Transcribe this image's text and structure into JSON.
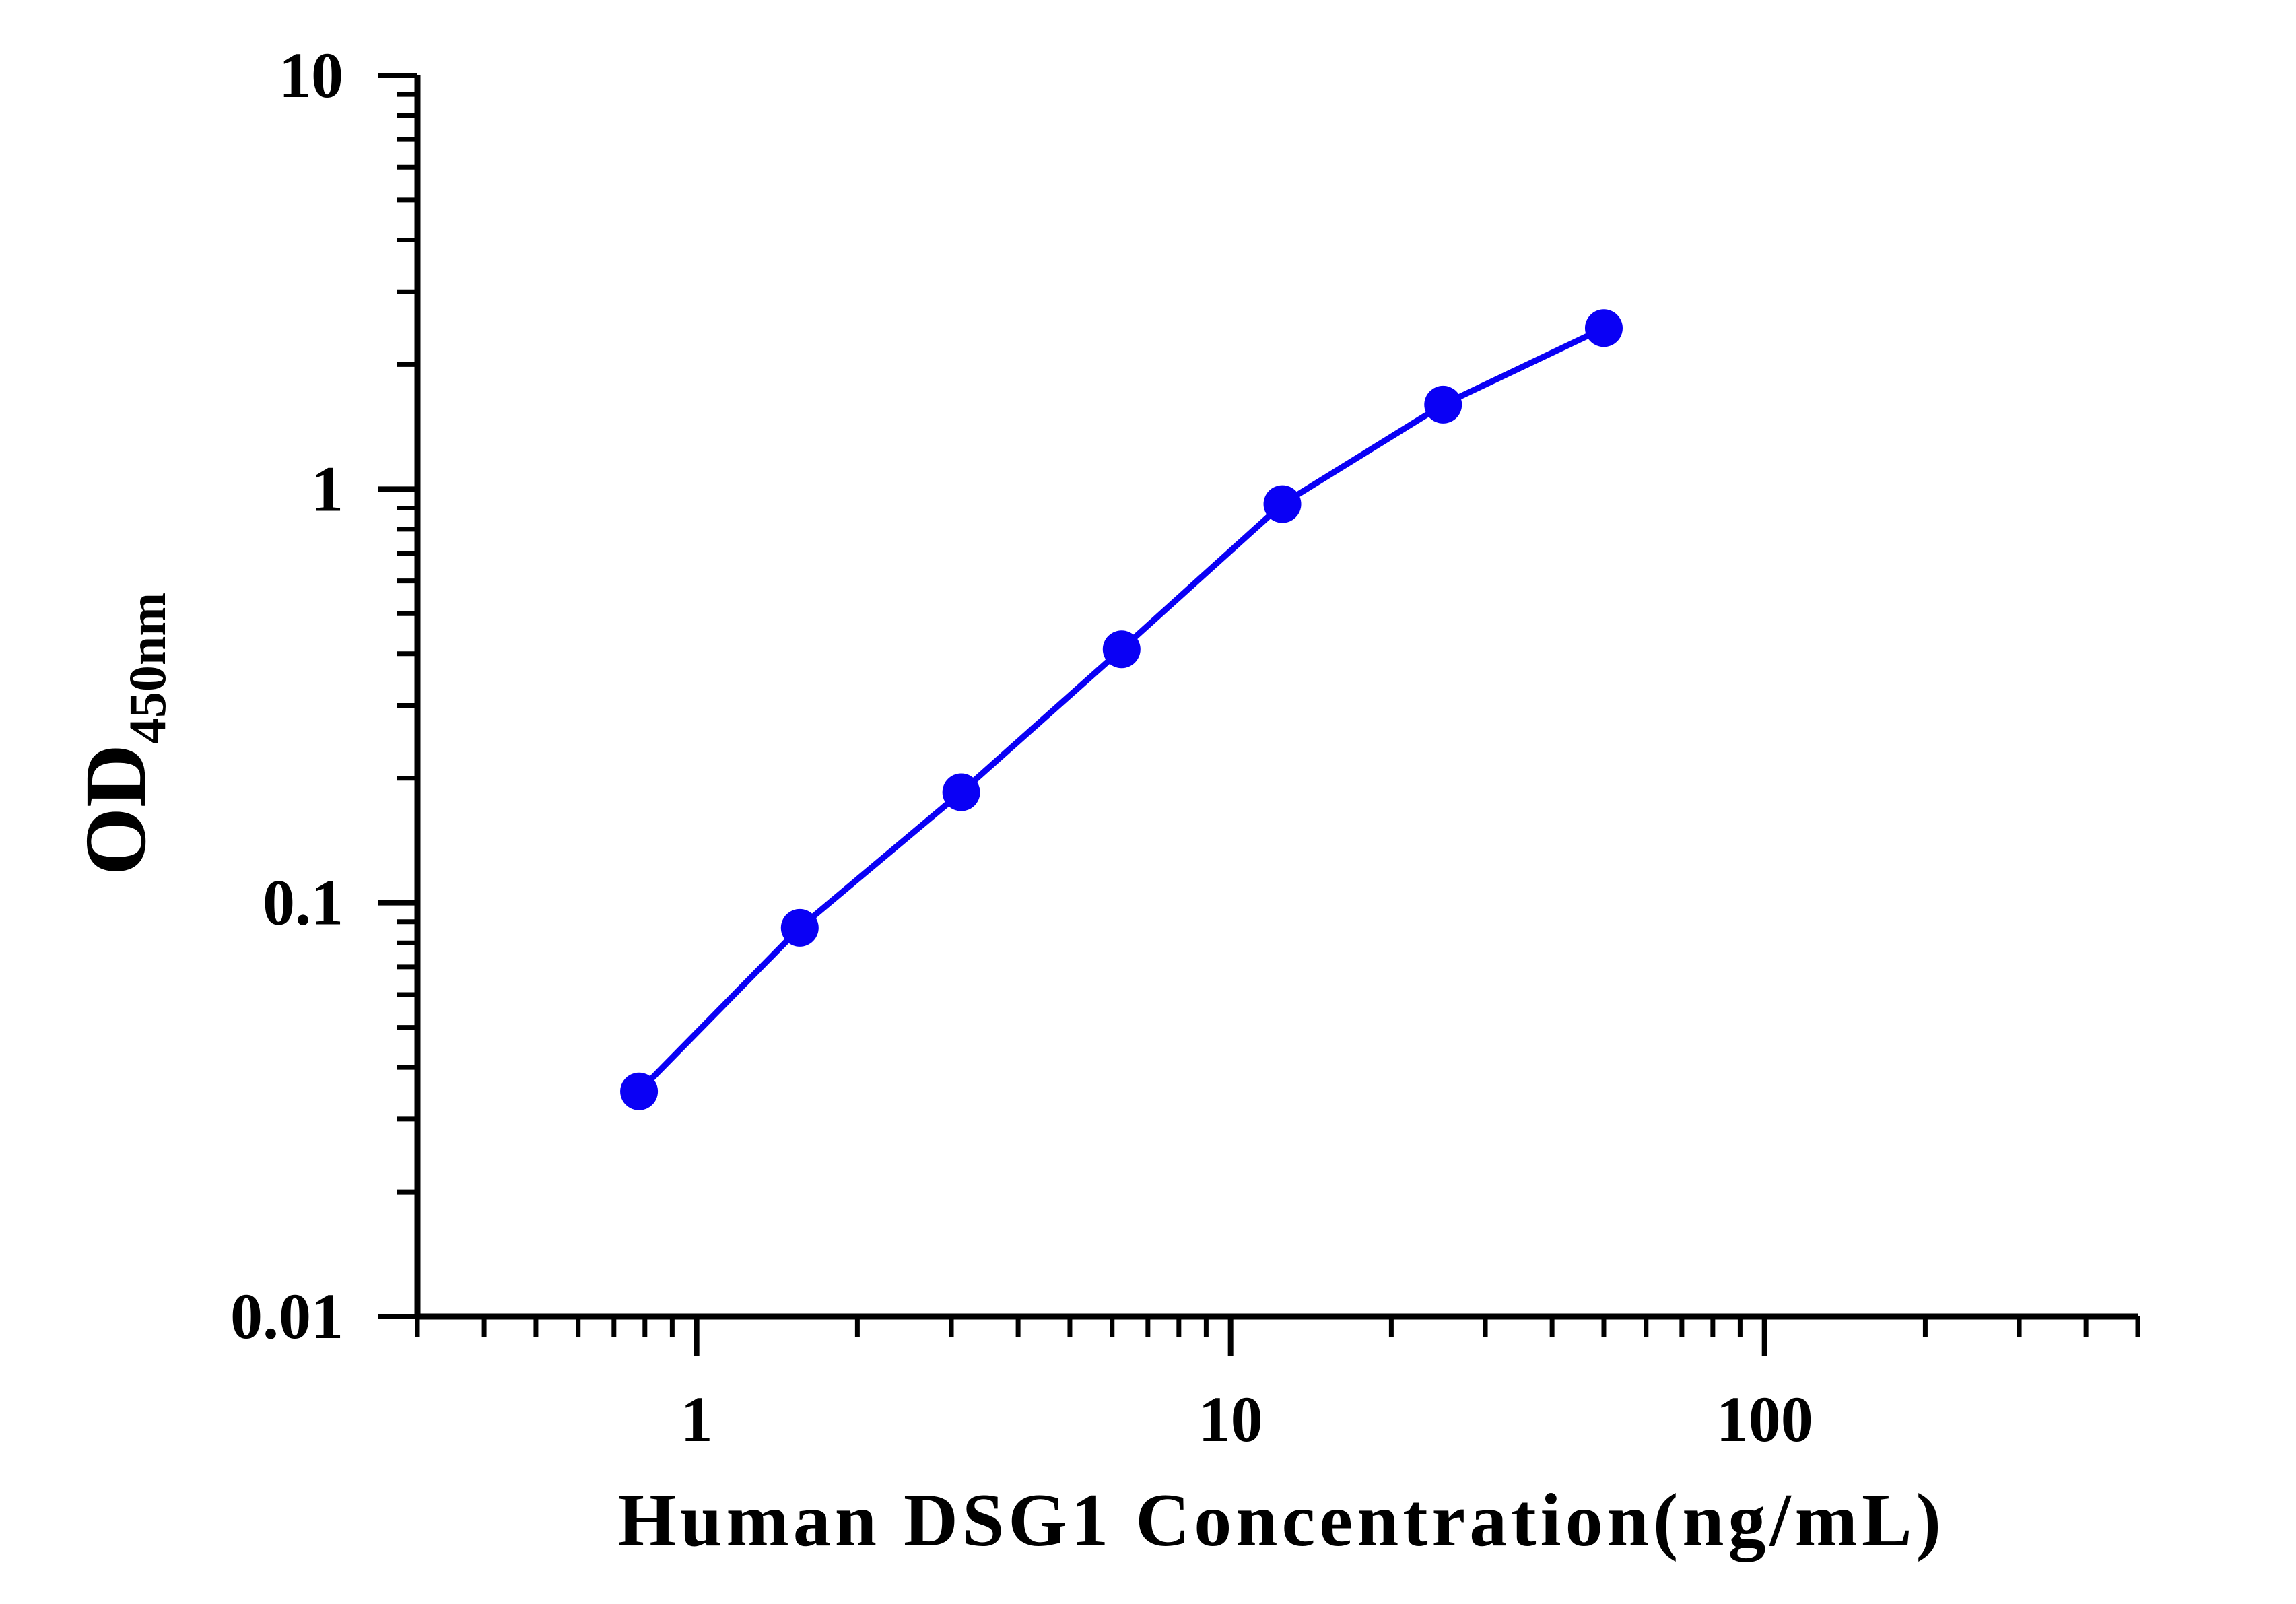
{
  "chart_data": {
    "type": "line",
    "xlabel": "Human DSG1 Concentration(ng/mL)",
    "ylabel": "OD",
    "ylabel_subscript": "450nm",
    "xscale": "log",
    "yscale": "log",
    "xlim": [
      0.3,
      500
    ],
    "ylim": [
      0.01,
      10
    ],
    "x_tick_labels": [
      "1",
      "10",
      "100"
    ],
    "y_tick_labels": [
      "0.01",
      "0.1",
      "1",
      "10"
    ],
    "grid": false,
    "legend": "none",
    "series": [
      {
        "color": "#0a00f5",
        "x": [
          0.78,
          1.56,
          3.13,
          6.25,
          12.5,
          25,
          50
        ],
        "y": [
          0.035,
          0.087,
          0.185,
          0.41,
          0.92,
          1.6,
          2.45
        ]
      }
    ]
  }
}
